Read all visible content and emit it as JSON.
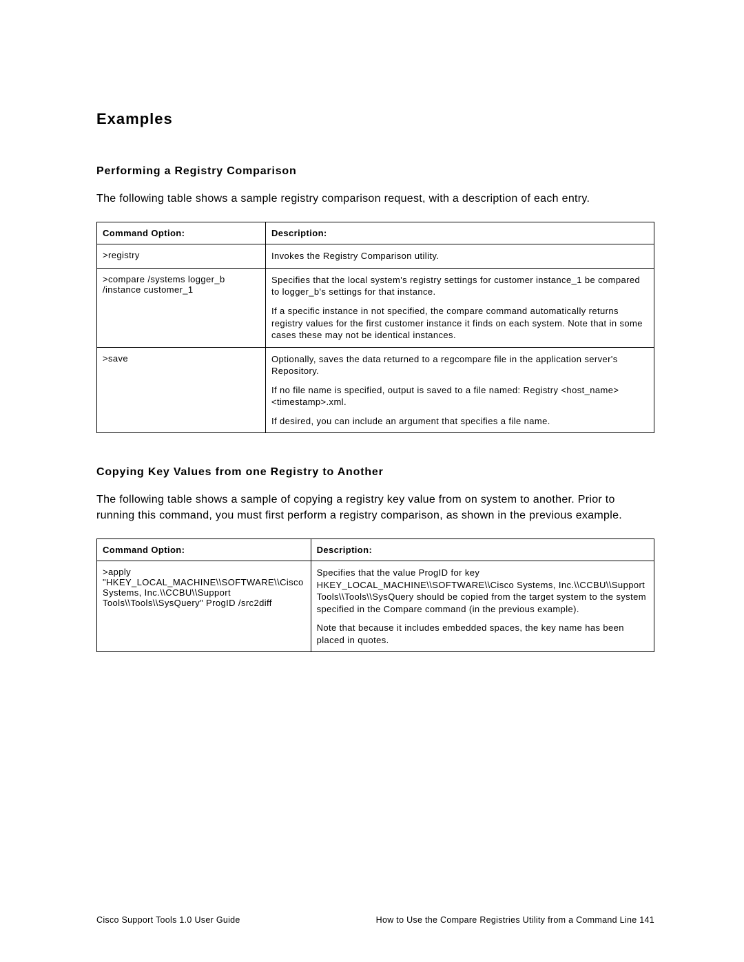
{
  "heading": "Examples",
  "section1": {
    "title": "Performing a Registry Comparison",
    "intro": "The following table shows a sample registry comparison request, with a description of each entry.",
    "table": {
      "header": {
        "c1": "Command Option:",
        "c2": "Description:"
      },
      "rows": [
        {
          "c1": ">registry",
          "c2": [
            "Invokes the Registry Comparison utility."
          ]
        },
        {
          "c1": ">compare /systems logger_b /instance customer_1",
          "c2": [
            "Specifies that the local system's registry settings for customer instance_1 be compared to logger_b's settings for that instance.",
            "If a specific instance in not specified, the compare command automatically returns registry values for the first customer instance it finds on each system. Note that in some cases these may not be identical instances."
          ]
        },
        {
          "c1": ">save",
          "c2": [
            "Optionally, saves the data returned to a regcompare  file in the application server's Repository.",
            "If no file name is specified, output is saved to a file named: Registry <host_name> <timestamp>.xml.",
            "If desired, you can include an argument that specifies a file name."
          ]
        }
      ]
    }
  },
  "section2": {
    "title": "Copying Key Values from one Registry to Another",
    "intro": "The following table shows a sample of copying a registry key value from on system to another. Prior to running this command, you must first perform a registry comparison, as shown in the previous example.",
    "table": {
      "header": {
        "c1": "Command Option:",
        "c2": "Description:"
      },
      "rows": [
        {
          "c1": ">apply \"HKEY_LOCAL_MACHINE\\\\SOFTWARE\\\\Cisco Systems, Inc.\\\\CCBU\\\\Support Tools\\\\Tools\\\\SysQuery\" ProgID /src2diff",
          "c2": [
            "Specifies that the value ProgID for key HKEY_LOCAL_MACHINE\\\\SOFTWARE\\\\Cisco Systems, Inc.\\\\CCBU\\\\Support Tools\\\\Tools\\\\SysQuery should be copied from the target system to the system specified in the Compare command (in the previous example).",
            "Note that because it includes embedded spaces, the key name has been placed in quotes."
          ]
        }
      ]
    }
  },
  "footer": {
    "left": "Cisco Support Tools 1.0 User Guide",
    "right": "How to Use the Compare Registries Utility from a Command Line   141"
  }
}
